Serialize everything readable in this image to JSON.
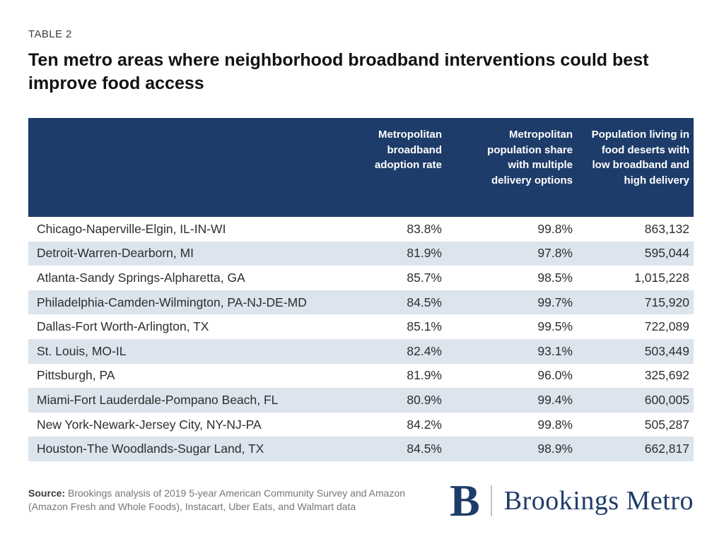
{
  "page": {
    "table_label": "TABLE 2",
    "title": "Ten metro areas where neighborhood broadband interventions could best improve food access"
  },
  "chart_data": {
    "type": "table",
    "title": "Ten metro areas where neighborhood broadband interventions could best improve food access",
    "columns": [
      "",
      "Metropolitan broadband adoption rate",
      "Metropolitan population share with multiple delivery options",
      "Population living in food deserts with low broadband and high delivery"
    ],
    "rows": [
      [
        "Chicago-Naperville-Elgin, IL-IN-WI",
        "83.8%",
        "99.8%",
        "863,132"
      ],
      [
        "Detroit-Warren-Dearborn, MI",
        "81.9%",
        "97.8%",
        "595,044"
      ],
      [
        "Atlanta-Sandy Springs-Alpharetta, GA",
        "85.7%",
        "98.5%",
        "1,015,228"
      ],
      [
        "Philadelphia-Camden-Wilmington, PA-NJ-DE-MD",
        "84.5%",
        "99.7%",
        "715,920"
      ],
      [
        "Dallas-Fort Worth-Arlington, TX",
        "85.1%",
        "99.5%",
        "722,089"
      ],
      [
        "St. Louis, MO-IL",
        "82.4%",
        "93.1%",
        "503,449"
      ],
      [
        "Pittsburgh, PA",
        "81.9%",
        "96.0%",
        "325,692"
      ],
      [
        "Miami-Fort Lauderdale-Pompano Beach, FL",
        "80.9%",
        "99.4%",
        "600,005"
      ],
      [
        "New York-Newark-Jersey City, NY-NJ-PA",
        "84.2%",
        "99.8%",
        "505,287"
      ],
      [
        "Houston-The Woodlands-Sugar Land, TX",
        "84.5%",
        "98.9%",
        "662,817"
      ]
    ]
  },
  "footer": {
    "source_label": "Source:",
    "source_text": "Brookings analysis of 2019 5-year American Community Survey and Amazon (Amazon Fresh and Whole Foods), Instacart, Uber Eats, and Walmart data",
    "logo": {
      "monogram": "B",
      "wordmark": "Brookings Metro"
    }
  },
  "colors": {
    "header_bg": "#1e3c69",
    "stripe": "#dce4ed",
    "navy": "#1e3c69",
    "divider": "#b9c5d4"
  }
}
